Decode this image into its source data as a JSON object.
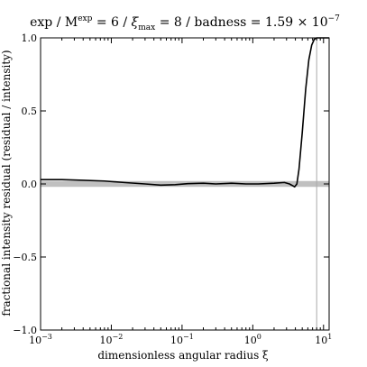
{
  "chart_data": {
    "type": "line",
    "title": {
      "main": "exp / M",
      "main_sup": "exp",
      "eq1": " = 6 / ",
      "xi": "ξ",
      "xi_sub": "max",
      "eq2": " = 8 / badness = 1.59 × 10",
      "exp_sup": "−7"
    },
    "xlabel": "dimensionless angular radius ξ",
    "ylabel": "fractional intensity residual (residual / intensity)",
    "x_scale": "log",
    "xlim": [
      0.001,
      12
    ],
    "ylim": [
      -1.0,
      1.0
    ],
    "x_ticks": [
      {
        "value": 0.001,
        "base": "10",
        "exp": "−3"
      },
      {
        "value": 0.01,
        "base": "10",
        "exp": "−2"
      },
      {
        "value": 0.1,
        "base": "10",
        "exp": "−1"
      },
      {
        "value": 1,
        "base": "10",
        "exp": "0"
      },
      {
        "value": 10,
        "base": "10",
        "exp": "1"
      }
    ],
    "y_ticks": [
      {
        "value": 1.0,
        "label": "1.0"
      },
      {
        "value": 0.5,
        "label": "0.5"
      },
      {
        "value": 0.0,
        "label": "0.0"
      },
      {
        "value": -0.5,
        "label": "−0.5"
      },
      {
        "value": -1.0,
        "label": "−1.0"
      }
    ],
    "tolerance_band": {
      "y_min": -0.02,
      "y_max": 0.02,
      "color": "#c0c0c0"
    },
    "vertical_marker": {
      "x": 8,
      "color": "#aaaaaa"
    },
    "series": [
      {
        "color": "#000000",
        "x": [
          0.001,
          0.002,
          0.004,
          0.008,
          0.015,
          0.03,
          0.05,
          0.08,
          0.12,
          0.2,
          0.3,
          0.5,
          0.8,
          1.2,
          2.0,
          2.8,
          3.3,
          3.6,
          3.9,
          4.2,
          4.5,
          5.0,
          5.6,
          6.2,
          6.8,
          7.4,
          8.0,
          9.0,
          10.0,
          11.0,
          12.0
        ],
        "y": [
          0.03,
          0.03,
          0.025,
          0.02,
          0.01,
          0.0,
          -0.008,
          -0.005,
          0.002,
          0.005,
          0.0,
          0.005,
          0.0,
          0.0,
          0.005,
          0.01,
          0.0,
          -0.01,
          -0.02,
          0.0,
          0.1,
          0.35,
          0.65,
          0.85,
          0.95,
          0.99,
          1.0,
          1.0,
          1.0,
          1.0,
          1.0
        ]
      }
    ]
  }
}
